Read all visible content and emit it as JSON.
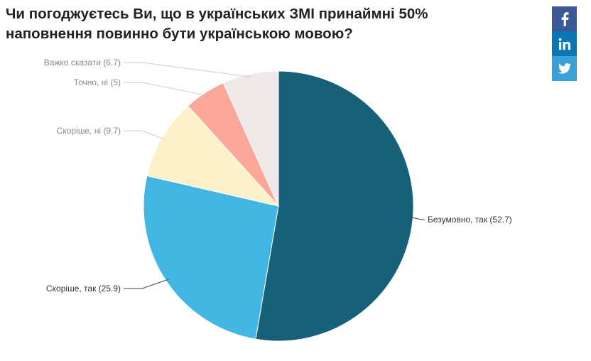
{
  "title": "Чи погоджуєтесь Ви, що в українських ЗМІ принаймні 50% наповнення повинно бути українською мовою?",
  "share": {
    "facebook_icon": "facebook-icon",
    "linkedin_icon": "linkedin-icon",
    "twitter_icon": "twitter-icon",
    "colors": {
      "facebook": "#3b5998",
      "linkedin": "#0a76b4",
      "twitter": "#3aa0d8"
    }
  },
  "chart_data": {
    "type": "pie",
    "title": "Чи погоджуєтесь Ви, що в українських ЗМІ принаймні 50% наповнення повинно бути українською мовою?",
    "slices": [
      {
        "label": "Безумовно, так",
        "value": 52.7,
        "color": "#17607a",
        "text_color": "#333333"
      },
      {
        "label": "Скоріше, так",
        "value": 25.9,
        "color": "#42b6e3",
        "text_color": "#333333"
      },
      {
        "label": "Скоріше, ні",
        "value": 9.7,
        "color": "#fcf1c9",
        "text_color": "#888888"
      },
      {
        "label": "Точно, ні",
        "value": 5,
        "color": "#fba89b",
        "text_color": "#888888"
      },
      {
        "label": "Важко сказати",
        "value": 6.7,
        "color": "#efe8e8",
        "text_color": "#888888"
      }
    ],
    "legend": "none",
    "data_labels": "outside-with-leader-lines",
    "start_angle": "top, clockwise"
  }
}
